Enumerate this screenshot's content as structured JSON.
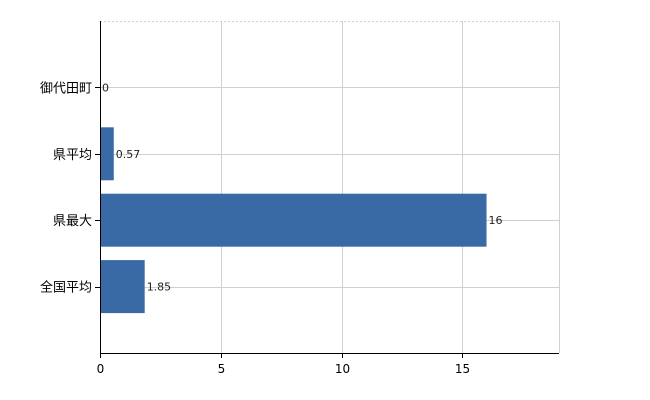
{
  "chart_data": {
    "type": "bar",
    "orientation": "horizontal",
    "categories": [
      "御代田町",
      "県平均",
      "県最大",
      "全国平均"
    ],
    "values": [
      0,
      0.57,
      16,
      1.85
    ],
    "value_labels": [
      "0",
      "0.57",
      "16",
      "1.85"
    ],
    "x_ticks": [
      "0",
      "5",
      "10",
      "15"
    ],
    "xlim": [
      0,
      19
    ],
    "bar_color": "#3a6aa6",
    "grid": true,
    "legend": "none"
  }
}
